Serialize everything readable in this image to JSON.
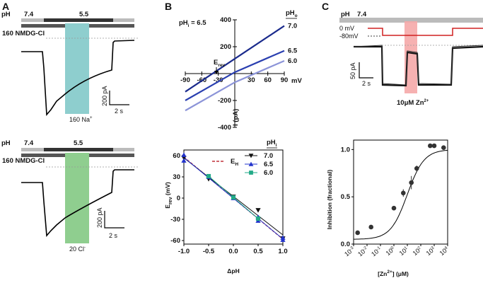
{
  "panels": {
    "A": "A",
    "B": "B",
    "C": "C"
  },
  "panelA": {
    "top": {
      "ph_label": "pH",
      "ph_initial": "7.4",
      "ph_test": "5.5",
      "solution_label": "160 NMDG-Cl",
      "ion_label": "160 Na",
      "ion_superscript": "+",
      "scale_current": "200 pA",
      "scale_time": "2 s"
    },
    "bottom": {
      "ph_label": "pH",
      "ph_initial": "7.4",
      "ph_test": "5.5",
      "solution_label": "160 NMDG-Cl",
      "ion_label": "20 Cl",
      "ion_superscript": "-",
      "scale_current": "200 pA",
      "scale_time": "2 s"
    }
  },
  "panelC": {
    "ph_label": "pH",
    "ph_value": "7.4",
    "v0_label": "0 mV",
    "vhold_label": "-80mV",
    "scale_current": "50 pA",
    "scale_time": "2 s",
    "zn_label": "10μM Zn",
    "zn_superscript": "2+"
  },
  "chart_data": [
    {
      "type": "line",
      "id": "B-IV",
      "title": "pHi = 6.5",
      "inner_label_main": "pH",
      "inner_label_sub": "i",
      "inner_label_rest": " = 6.5",
      "legend_title": "pH",
      "legend_title_sub": "o",
      "xlabel": "mV",
      "ylabel": "I (pA)",
      "xlim": [
        -90,
        90
      ],
      "ylim": [
        -400,
        400
      ],
      "x_ticks": [
        -90,
        -60,
        -30,
        30,
        60,
        90
      ],
      "y_ticks": [
        -400,
        -200,
        200,
        400
      ],
      "annotation": "Erev",
      "series": [
        {
          "name": "7.0",
          "color": "#1a2a8c",
          "x": [
            -90,
            0,
            90
          ],
          "y": [
            -135,
            110,
            355
          ]
        },
        {
          "name": "6.5",
          "color": "#2a3fb0",
          "x": [
            -90,
            0,
            90
          ],
          "y": [
            -200,
            10,
            170
          ]
        },
        {
          "name": "6.0",
          "color": "#8c94d8",
          "x": [
            -90,
            0,
            90
          ],
          "y": [
            -275,
            -65,
            95
          ]
        }
      ]
    },
    {
      "type": "scatter",
      "id": "B-Erev",
      "legend_title": "pH",
      "legend_title_sub": "i",
      "xlabel": "ΔpH",
      "ylabel": "E",
      "ylabel_sub": "rev",
      "ylabel_unit": " (mV)",
      "xlim": [
        -1.0,
        1.0
      ],
      "ylim": [
        -65,
        68
      ],
      "x_ticks": [
        -1.0,
        -0.5,
        0.0,
        0.5,
        1.0
      ],
      "y_ticks": [
        60,
        30,
        0,
        -30,
        -60
      ],
      "reference_line": {
        "name": "E",
        "name_sub": "H",
        "x": [
          -1.0,
          1.0
        ],
        "y": [
          58,
          -58
        ]
      },
      "series": [
        {
          "name": "7.0",
          "color": "#111111",
          "marker": "triangle-down",
          "x": [
            -1.0,
            -0.5,
            0.0,
            0.5,
            1.0
          ],
          "y": [
            57,
            27,
            2,
            -17,
            -57
          ]
        },
        {
          "name": "6.5",
          "color": "#2233cc",
          "marker": "triangle-up",
          "x": [
            -1.0,
            -1.0,
            -0.5,
            0.0,
            0.5,
            0.5,
            1.0,
            1.0
          ],
          "y": [
            61,
            53,
            30,
            0,
            -27,
            -32,
            -56,
            -59
          ]
        },
        {
          "name": "6.0",
          "color": "#22aa88",
          "marker": "square",
          "x": [
            -0.5,
            0.0,
            0.5
          ],
          "y": [
            31,
            1,
            -29
          ]
        }
      ]
    },
    {
      "type": "scatter",
      "id": "C-dose",
      "xlabel": "[Zn",
      "xlabel_sup": "2+",
      "xlabel_rest": "] (μM)",
      "ylabel": "Inhibition (fractional)",
      "xlim_log10": [
        -3,
        4
      ],
      "ylim": [
        0.0,
        1.1
      ],
      "x_ticks_exp": [
        -3,
        -2,
        -1,
        0,
        1,
        2,
        3,
        4
      ],
      "x_tick_base": "10",
      "y_ticks": [
        0.0,
        0.5,
        1.0
      ],
      "fit": {
        "IC50_uM": 10,
        "hill": 0.7
      },
      "points": [
        {
          "x_log10": -2.7,
          "y": 0.12,
          "err": 0
        },
        {
          "x_log10": -1.7,
          "y": 0.18,
          "err": 0
        },
        {
          "x_log10": 0.0,
          "y": 0.38,
          "err": 0
        },
        {
          "x_log10": 0.7,
          "y": 0.54,
          "err": 0.04
        },
        {
          "x_log10": 1.3,
          "y": 0.65,
          "err": 0.07
        },
        {
          "x_log10": 1.7,
          "y": 0.8,
          "err": 0.03
        },
        {
          "x_log10": 2.7,
          "y": 1.04,
          "err": 0.02
        },
        {
          "x_log10": 3.0,
          "y": 1.04,
          "err": 0
        },
        {
          "x_log10": 3.7,
          "y": 1.02,
          "err": 0.02
        }
      ]
    }
  ]
}
